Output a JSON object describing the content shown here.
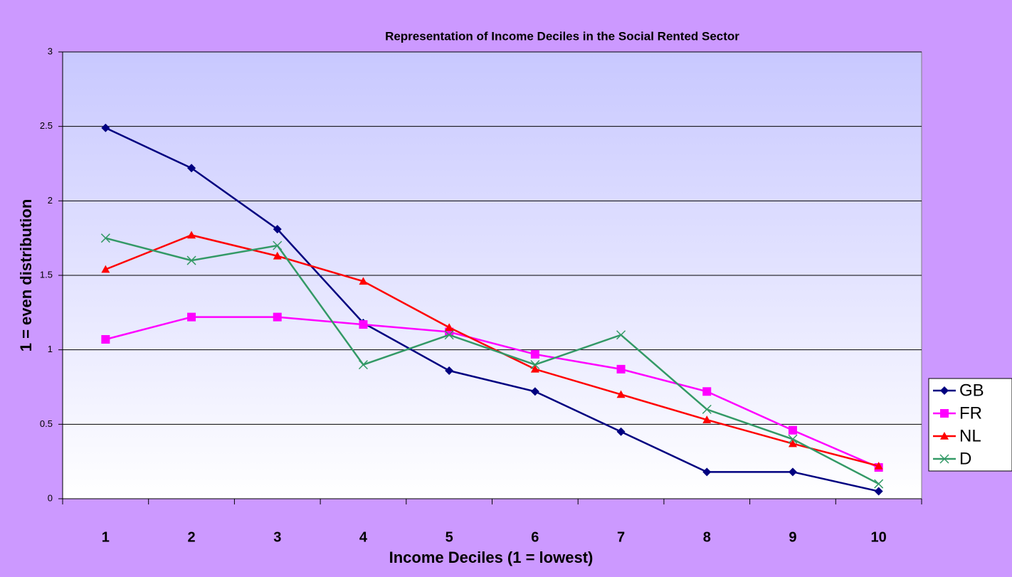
{
  "chart_data": {
    "type": "line",
    "title": "Representation of Income Deciles in the Social Rented Sector",
    "x_label": "Income Deciles (1 = lowest)",
    "y_label": "1 = even distribution",
    "categories": [
      "1",
      "2",
      "3",
      "4",
      "5",
      "6",
      "7",
      "8",
      "9",
      "10"
    ],
    "series": [
      {
        "name": "GB",
        "color": "#000080",
        "marker": "diamond",
        "values": [
          2.49,
          2.22,
          1.81,
          1.18,
          0.86,
          0.72,
          0.45,
          0.18,
          0.18,
          0.05
        ]
      },
      {
        "name": "FR",
        "color": "#ff00ff",
        "marker": "square",
        "values": [
          1.07,
          1.22,
          1.22,
          1.17,
          1.12,
          0.97,
          0.87,
          0.72,
          0.46,
          0.21
        ]
      },
      {
        "name": "NL",
        "color": "#ff0000",
        "marker": "triangle",
        "values": [
          1.54,
          1.77,
          1.63,
          1.46,
          1.15,
          0.87,
          0.7,
          0.53,
          0.37,
          0.22
        ]
      },
      {
        "name": "D",
        "color": "#339966",
        "marker": "x",
        "values": [
          1.75,
          1.6,
          1.7,
          0.9,
          1.1,
          0.9,
          1.1,
          0.6,
          0.4,
          0.1
        ]
      }
    ],
    "ylim": [
      0,
      3
    ],
    "yticks": [
      0,
      0.5,
      1,
      1.5,
      2,
      2.5,
      3
    ],
    "grid": true,
    "legend": "right"
  }
}
